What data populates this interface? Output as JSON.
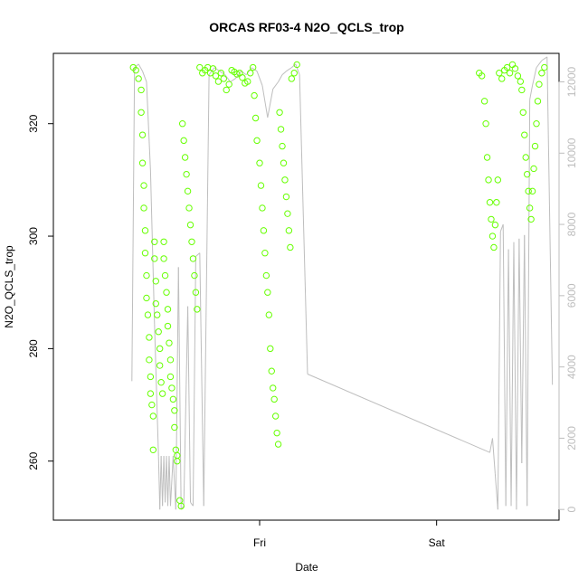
{
  "chart_data": {
    "type": "scatter",
    "title": "ORCAS RF03-4 N2O_QCLS_trop",
    "xlabel": "Date",
    "ylabel": "N2O_QCLS_trop",
    "x_ticks": [
      "Fri",
      "Sat"
    ],
    "y_ticks": [
      260,
      280,
      300,
      320
    ],
    "y2_ticks": [
      0,
      2000,
      4000,
      6000,
      8000,
      10000,
      12000
    ],
    "ylim": [
      249.5,
      332.5
    ],
    "y2lim": [
      -300,
      12800
    ],
    "colors": {
      "points": "#66ff00",
      "altitude_line": "#bebebe",
      "axis": "#000000",
      "secondary_axis": "#bdbdbd"
    },
    "series": [
      {
        "kind": "scatter",
        "marker": "open-circle",
        "points": [
          [
            0.05,
            330
          ],
          [
            0.07,
            329.5
          ],
          [
            0.09,
            328
          ],
          [
            0.11,
            326
          ],
          [
            0.11,
            322
          ],
          [
            0.12,
            318
          ],
          [
            0.12,
            313
          ],
          [
            0.13,
            309
          ],
          [
            0.13,
            305
          ],
          [
            0.14,
            301
          ],
          [
            0.14,
            297
          ],
          [
            0.15,
            293
          ],
          [
            0.15,
            289
          ],
          [
            0.16,
            286
          ],
          [
            0.17,
            282
          ],
          [
            0.17,
            278
          ],
          [
            0.18,
            275
          ],
          [
            0.18,
            272
          ],
          [
            0.19,
            270
          ],
          [
            0.2,
            268
          ],
          [
            0.2,
            262
          ],
          [
            0.21,
            299
          ],
          [
            0.21,
            296
          ],
          [
            0.22,
            292
          ],
          [
            0.22,
            288
          ],
          [
            0.23,
            286
          ],
          [
            0.24,
            283
          ],
          [
            0.25,
            280
          ],
          [
            0.25,
            277
          ],
          [
            0.26,
            274
          ],
          [
            0.27,
            272
          ],
          [
            0.28,
            299
          ],
          [
            0.28,
            296
          ],
          [
            0.29,
            293
          ],
          [
            0.3,
            290
          ],
          [
            0.31,
            287
          ],
          [
            0.31,
            284
          ],
          [
            0.32,
            281
          ],
          [
            0.33,
            278
          ],
          [
            0.33,
            275
          ],
          [
            0.34,
            273
          ],
          [
            0.35,
            271
          ],
          [
            0.36,
            269
          ],
          [
            0.36,
            266
          ],
          [
            0.37,
            262
          ],
          [
            0.38,
            261
          ],
          [
            0.38,
            260
          ],
          [
            0.4,
            253
          ],
          [
            0.41,
            252
          ],
          [
            0.42,
            320
          ],
          [
            0.43,
            317
          ],
          [
            0.44,
            314
          ],
          [
            0.45,
            311
          ],
          [
            0.46,
            308
          ],
          [
            0.47,
            305
          ],
          [
            0.48,
            302
          ],
          [
            0.49,
            299
          ],
          [
            0.5,
            296
          ],
          [
            0.51,
            293
          ],
          [
            0.52,
            290
          ],
          [
            0.53,
            287
          ],
          [
            0.55,
            330
          ],
          [
            0.57,
            329
          ],
          [
            0.59,
            329.5
          ],
          [
            0.61,
            330
          ],
          [
            0.63,
            329
          ],
          [
            0.65,
            329.8
          ],
          [
            0.67,
            328.5
          ],
          [
            0.69,
            327.5
          ],
          [
            0.71,
            329
          ],
          [
            0.73,
            328
          ],
          [
            0.75,
            326
          ],
          [
            0.77,
            327
          ],
          [
            0.79,
            329.5
          ],
          [
            0.81,
            329.2
          ],
          [
            0.83,
            328.8
          ],
          [
            0.85,
            329
          ],
          [
            0.87,
            328.2
          ],
          [
            0.89,
            327.2
          ],
          [
            0.91,
            327.5
          ],
          [
            0.93,
            329
          ],
          [
            0.95,
            330
          ],
          [
            0.96,
            325
          ],
          [
            0.97,
            321
          ],
          [
            0.98,
            317
          ],
          [
            1.0,
            313
          ],
          [
            1.01,
            309
          ],
          [
            1.02,
            305
          ],
          [
            1.03,
            301
          ],
          [
            1.04,
            297
          ],
          [
            1.05,
            293
          ],
          [
            1.06,
            290
          ],
          [
            1.07,
            286
          ],
          [
            1.08,
            280
          ],
          [
            1.09,
            276
          ],
          [
            1.1,
            273
          ],
          [
            1.11,
            271
          ],
          [
            1.12,
            268
          ],
          [
            1.13,
            265
          ],
          [
            1.14,
            263
          ],
          [
            1.15,
            322
          ],
          [
            1.16,
            319
          ],
          [
            1.17,
            316
          ],
          [
            1.18,
            313
          ],
          [
            1.19,
            310
          ],
          [
            1.2,
            307
          ],
          [
            1.21,
            304
          ],
          [
            1.22,
            301
          ],
          [
            1.23,
            298
          ],
          [
            1.24,
            328
          ],
          [
            1.26,
            329
          ],
          [
            1.28,
            330.5
          ],
          [
            2.65,
            329
          ],
          [
            2.67,
            328.5
          ],
          [
            2.69,
            324
          ],
          [
            2.7,
            320
          ],
          [
            2.71,
            314
          ],
          [
            2.72,
            310
          ],
          [
            2.73,
            306
          ],
          [
            2.74,
            303
          ],
          [
            2.75,
            300
          ],
          [
            2.76,
            298
          ],
          [
            2.77,
            302
          ],
          [
            2.78,
            306
          ],
          [
            2.79,
            310
          ],
          [
            2.8,
            329
          ],
          [
            2.82,
            328
          ],
          [
            2.84,
            329.5
          ],
          [
            2.86,
            330
          ],
          [
            2.88,
            329
          ],
          [
            2.9,
            330.5
          ],
          [
            2.92,
            329.8
          ],
          [
            2.94,
            328.5
          ],
          [
            2.96,
            327.5
          ],
          [
            2.97,
            326
          ],
          [
            2.98,
            322
          ],
          [
            2.99,
            318
          ],
          [
            3.0,
            314
          ],
          [
            3.01,
            311
          ],
          [
            3.02,
            308
          ],
          [
            3.03,
            305
          ],
          [
            3.04,
            303
          ],
          [
            3.05,
            308
          ],
          [
            3.06,
            312
          ],
          [
            3.07,
            316
          ],
          [
            3.08,
            320
          ],
          [
            3.09,
            324
          ],
          [
            3.1,
            327
          ],
          [
            3.12,
            329
          ],
          [
            3.14,
            330
          ]
        ]
      },
      {
        "kind": "line",
        "axis": "right",
        "points": [
          [
            0.04,
            3600
          ],
          [
            0.06,
            12400
          ],
          [
            0.09,
            12500
          ],
          [
            0.12,
            12300
          ],
          [
            0.15,
            12000
          ],
          [
            0.18,
            9500
          ],
          [
            0.21,
            5200
          ],
          [
            0.24,
            1500
          ],
          [
            0.25,
            0
          ],
          [
            0.26,
            1500
          ],
          [
            0.27,
            100
          ],
          [
            0.28,
            1500
          ],
          [
            0.29,
            200
          ],
          [
            0.3,
            1500
          ],
          [
            0.31,
            100
          ],
          [
            0.32,
            1500
          ],
          [
            0.33,
            100
          ],
          [
            0.35,
            1500
          ],
          [
            0.37,
            0
          ],
          [
            0.39,
            6800
          ],
          [
            0.41,
            0
          ],
          [
            0.43,
            100
          ],
          [
            0.46,
            5700
          ],
          [
            0.48,
            200
          ],
          [
            0.5,
            100
          ],
          [
            0.52,
            7100
          ],
          [
            0.55,
            7200
          ],
          [
            0.58,
            100
          ],
          [
            0.62,
            12200
          ],
          [
            0.66,
            12400
          ],
          [
            0.7,
            12300
          ],
          [
            0.74,
            12200
          ],
          [
            0.78,
            12000
          ],
          [
            0.82,
            12100
          ],
          [
            0.86,
            12300
          ],
          [
            0.9,
            12200
          ],
          [
            0.94,
            12400
          ],
          [
            0.98,
            12300
          ],
          [
            1.02,
            11900
          ],
          [
            1.06,
            11000
          ],
          [
            1.1,
            11800
          ],
          [
            1.14,
            12000
          ],
          [
            1.17,
            12200
          ],
          [
            1.2,
            12300
          ],
          [
            1.24,
            12400
          ],
          [
            1.27,
            12500
          ],
          [
            1.3,
            12200
          ],
          [
            1.36,
            3800
          ],
          [
            2.73,
            1600
          ],
          [
            2.75,
            2000
          ],
          [
            2.77,
            1000
          ],
          [
            2.79,
            0
          ],
          [
            2.81,
            7800
          ],
          [
            2.83,
            8000
          ],
          [
            2.85,
            100
          ],
          [
            2.87,
            7300
          ],
          [
            2.89,
            100
          ],
          [
            2.91,
            7500
          ],
          [
            2.93,
            0
          ],
          [
            2.95,
            7600
          ],
          [
            2.97,
            1300
          ],
          [
            2.99,
            7700
          ],
          [
            3.01,
            100
          ],
          [
            3.03,
            11500
          ],
          [
            3.05,
            11900
          ],
          [
            3.08,
            12400
          ],
          [
            3.12,
            12600
          ],
          [
            3.16,
            12700
          ],
          [
            3.2,
            3500
          ]
        ]
      }
    ],
    "x_positions": {
      "Fri": 1.0,
      "Sat": 2.33
    },
    "xlim": [
      -0.55,
      3.25
    ]
  }
}
